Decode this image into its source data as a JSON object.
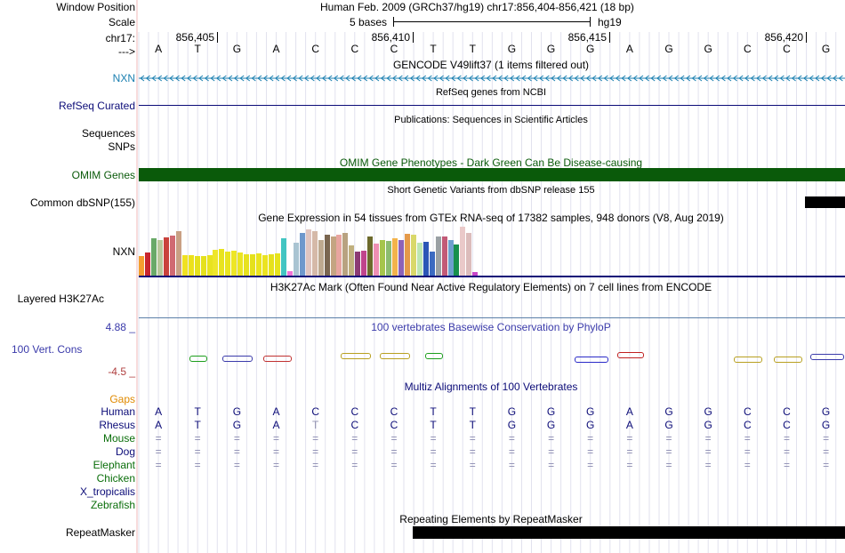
{
  "header": {
    "window_position_label": "Window Position",
    "scale_label": "Scale",
    "chrom_label": "chr17:",
    "arrow_label": "--->",
    "assembly_title": "Human Feb. 2009 (GRCh37/hg19)   chr17:856,404-856,421 (18 bp)",
    "scale_text": "5 bases",
    "scale_assembly": "hg19",
    "positions": [
      "856,405",
      "856,410",
      "856,415",
      "856,420"
    ],
    "bases": [
      "A",
      "T",
      "G",
      "A",
      "C",
      "C",
      "C",
      "T",
      "T",
      "G",
      "G",
      "G",
      "A",
      "G",
      "G",
      "C",
      "C",
      "G"
    ]
  },
  "tracks": {
    "gencode": {
      "title": "GENCODE V49lift37 (1 items filtered out)",
      "label": "NXN",
      "color": "#1a7fb0"
    },
    "refseq": {
      "title": "RefSeq genes from NCBI",
      "label": "RefSeq Curated",
      "color": "#0c0c78"
    },
    "publications": {
      "title": "Publications: Sequences in Scientific Articles",
      "label": "Sequences"
    },
    "snps": {
      "label": "SNPs"
    },
    "omim": {
      "title": "OMIM Gene Phenotypes - Dark Green Can Be Disease-causing",
      "label": "OMIM Genes",
      "color": "#0a5a0a"
    },
    "dbsnp": {
      "title": "Short Genetic Variants from dbSNP release 155",
      "label": "Common dbSNP(155)"
    },
    "gtex": {
      "title": "Gene Expression in 54 tissues from GTEx RNA-seq of 17382 samples, 948 donors (V8, Aug 2019)",
      "label": "NXN",
      "values": [
        22,
        26,
        42,
        40,
        43,
        45,
        50,
        23,
        23,
        22,
        22,
        23,
        29,
        30,
        27,
        28,
        26,
        24,
        24,
        25,
        23,
        24,
        25,
        42,
        5,
        37,
        48,
        52,
        50,
        40,
        46,
        44,
        46,
        48,
        34,
        27,
        28,
        44,
        36,
        40,
        39,
        42,
        40,
        47,
        46,
        37,
        38,
        27,
        44,
        44,
        40,
        35,
        55,
        48,
        4
      ],
      "colors": [
        "#f59e2f",
        "#c8262e",
        "#69a968",
        "#b8c79a",
        "#c9423c",
        "#d06a72",
        "#c9a084",
        "#f0e120",
        "#ece11a",
        "#e5e11d",
        "#e5e11d",
        "#e8e31f",
        "#eee62a",
        "#e8e31f",
        "#e9e420",
        "#eee626",
        "#ebe522",
        "#e7e21f",
        "#e5e11c",
        "#eae41e",
        "#ebe320",
        "#e6e11c",
        "#e6e31d",
        "#42c5c2",
        "#f074d6",
        "#a9c4d2",
        "#6e98cc",
        "#e0c5c0",
        "#d5b9a8",
        "#bea98f",
        "#7a6650",
        "#c4a482",
        "#e8a5a0",
        "#b8a280",
        "#c0b07e",
        "#8b3b74",
        "#c0448c",
        "#6c6a2c",
        "#ee8fb3",
        "#a6c54c",
        "#8cbc70",
        "#f3b34b",
        "#8d62b8",
        "#e59a4a",
        "#d9d86a",
        "#bde6b2",
        "#2b56b6",
        "#3c6ac1",
        "#9aa0a4",
        "#c25a77",
        "#6d9fce",
        "#17904d",
        "#eac9c9",
        "#dcbcbb",
        "#c946c9"
      ]
    },
    "h3k27ac": {
      "title": "H3K27Ac Mark (Often Found Near Active Regulatory Elements) on 7 cell lines from ENCODE",
      "label": "Layered H3K27Ac"
    },
    "phylop": {
      "title": "100 vertebrates Basewise Conservation by PhyloP",
      "label": "100 Vert. Cons",
      "max": "4.88 _",
      "min": "-4.5 _",
      "color": "#3a3aaa"
    },
    "multiz": {
      "title": "Multiz Alignments of 100 Vertebrates",
      "gaps_label": "Gaps",
      "species": [
        {
          "name": "Human",
          "color": "#0c0c78",
          "bases": [
            "A",
            "T",
            "G",
            "A",
            "C",
            "C",
            "C",
            "T",
            "T",
            "G",
            "G",
            "G",
            "A",
            "G",
            "G",
            "C",
            "C",
            "G"
          ]
        },
        {
          "name": "Rhesus",
          "color": "#0c0c78",
          "bases": [
            "A",
            "T",
            "G",
            "A",
            "T",
            "C",
            "C",
            "T",
            "T",
            "G",
            "G",
            "G",
            "A",
            "G",
            "G",
            "C",
            "C",
            "G"
          ]
        },
        {
          "name": "Mouse",
          "color": "#0a6e0a",
          "bases": [
            "=",
            "=",
            "=",
            "=",
            "=",
            "=",
            "=",
            "=",
            "=",
            "=",
            "=",
            "=",
            "=",
            "=",
            "=",
            "=",
            "=",
            "="
          ]
        },
        {
          "name": "Dog",
          "color": "#0c0c78",
          "bases": [
            "=",
            "=",
            "=",
            "=",
            "=",
            "=",
            "=",
            "=",
            "=",
            "=",
            "=",
            "=",
            "=",
            "=",
            "=",
            "=",
            "=",
            "="
          ]
        },
        {
          "name": "Elephant",
          "color": "#0a6e0a",
          "bases": [
            "=",
            "=",
            "=",
            "=",
            "=",
            "=",
            "=",
            "=",
            "=",
            "=",
            "=",
            "=",
            "=",
            "=",
            "=",
            "=",
            "=",
            "="
          ]
        },
        {
          "name": "Chicken",
          "color": "#0a6e0a",
          "bases": []
        },
        {
          "name": "X_tropicalis",
          "color": "#0c0c78",
          "bases": []
        },
        {
          "name": "Zebrafish",
          "color": "#0a6e0a",
          "bases": []
        }
      ]
    },
    "repeatmasker": {
      "title": "Repeating Elements by RepeatMasker",
      "label": "RepeatMasker"
    }
  }
}
